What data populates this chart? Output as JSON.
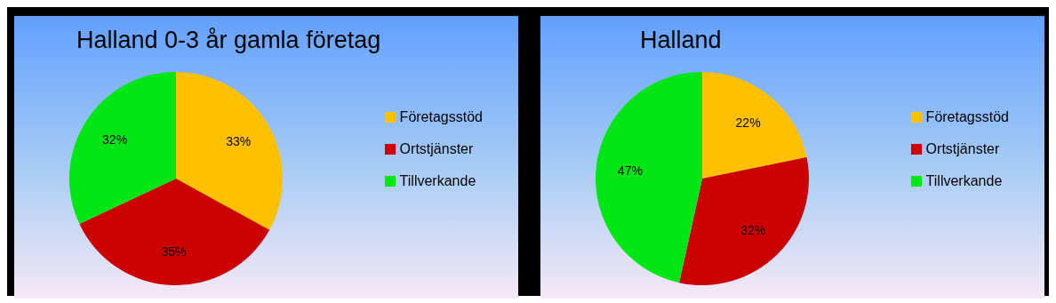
{
  "chart_data": [
    {
      "type": "pie",
      "title": "Halland 0-3 år gamla företag",
      "categories": [
        "Företagsstöd",
        "Ortstjänster",
        "Tillverkande"
      ],
      "values": [
        33,
        35,
        32
      ],
      "colors": [
        "#ffc000",
        "#cc0000",
        "#00e614"
      ],
      "value_labels": [
        "33%",
        "35%",
        "32%"
      ],
      "legend": "right"
    },
    {
      "type": "pie",
      "title": "Halland",
      "categories": [
        "Företagsstöd",
        "Ortstjänster",
        "Tillverkande"
      ],
      "values": [
        22,
        32,
        47
      ],
      "colors": [
        "#ffc000",
        "#cc0000",
        "#00e614"
      ],
      "value_labels": [
        "22%",
        "32%",
        "47%"
      ],
      "legend": "right"
    }
  ]
}
